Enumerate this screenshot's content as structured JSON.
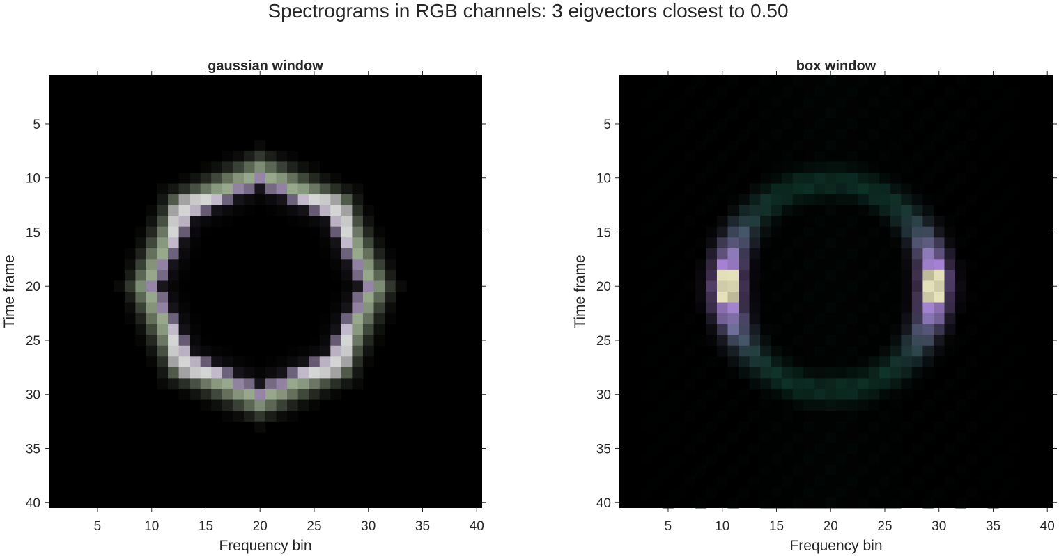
{
  "figure": {
    "suptitle": "Spectrograms in RGB channels: 3 eigvectors closest to 0.50"
  },
  "chart_data": [
    {
      "type": "heatmap",
      "title": "gaussian window",
      "xlabel": "Frequency bin",
      "ylabel": "Time frame",
      "xticks": [
        5,
        10,
        15,
        20,
        25,
        30,
        35,
        40
      ],
      "yticks": [
        5,
        10,
        15,
        20,
        25,
        30,
        35,
        40
      ],
      "xlim": [
        0.5,
        40.5
      ],
      "ylim": [
        40.5,
        0.5
      ],
      "grid_size": [
        40,
        40
      ],
      "background": "#000000",
      "ring": {
        "center": [
          20,
          20
        ],
        "inner_color": "#9a8aad",
        "outer_color": "#97a88c",
        "peak_color": "#efe9f4"
      }
    },
    {
      "type": "heatmap",
      "title": "box window",
      "xlabel": "Frequency bin",
      "ylabel": "Time frame",
      "xticks": [
        5,
        10,
        15,
        20,
        25,
        30,
        35,
        40
      ],
      "yticks": [
        5,
        10,
        15,
        20,
        25,
        30,
        35,
        40
      ],
      "xlim": [
        0.5,
        40.5
      ],
      "ylim": [
        40.5,
        0.5
      ],
      "grid_size": [
        40,
        40
      ],
      "background": "#000000",
      "ring": {
        "center": [
          20,
          20
        ],
        "inner_color": "#1e6e55",
        "side_color": "#b98ae6",
        "peak_color": "#f2f7b0"
      }
    }
  ]
}
